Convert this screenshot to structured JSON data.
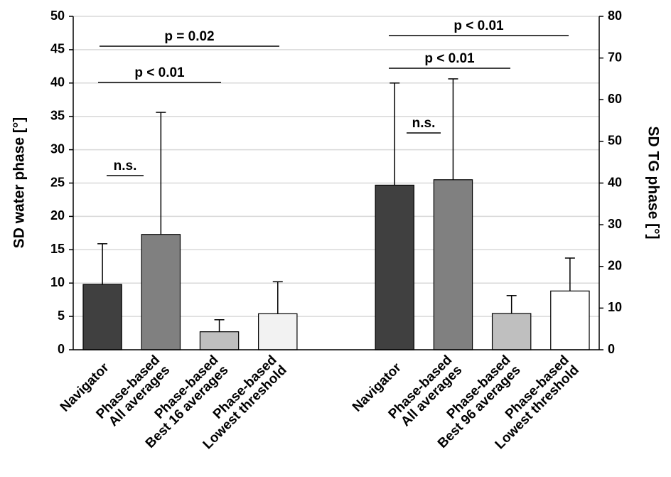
{
  "chart_data": {
    "type": "bar",
    "categories": [
      [
        "Navigator"
      ],
      [
        "Phase-based",
        "All averages"
      ],
      [
        "Phase-based",
        "Best 16 averages"
      ],
      [
        "Phase-based",
        "Lowest threshold"
      ],
      null,
      [
        "Navigator"
      ],
      [
        "Phase-based",
        "All averages"
      ],
      [
        "Phase-based",
        "Best 96 averages"
      ],
      [
        "Phase-based",
        "Lowest threshold"
      ]
    ],
    "ylabel": "SD water phase [°]",
    "y2label": "SD TG phase [°]",
    "ylim": [
      0,
      50
    ],
    "yticks": [
      0,
      5,
      10,
      15,
      20,
      25,
      30,
      35,
      40,
      45,
      50
    ],
    "y2lim": [
      0,
      80
    ],
    "y2ticks": [
      0,
      10,
      20,
      30,
      40,
      50,
      60,
      70,
      80
    ],
    "grid": true,
    "series": [
      {
        "values": [
          9.8,
          17.3,
          2.7,
          5.4,
          null,
          null,
          null,
          null,
          null
        ],
        "errors": [
          6.1,
          18.3,
          1.8,
          4.8,
          null,
          null,
          null,
          null,
          null
        ],
        "colors": [
          "#404040",
          "#808080",
          "#bfbfbf",
          "#f2f2f2",
          null,
          null,
          null,
          null,
          null
        ]
      },
      {
        "axis": "y2",
        "values": [
          null,
          null,
          null,
          null,
          null,
          39.5,
          40.8,
          8.7,
          14.1
        ],
        "errors": [
          null,
          null,
          null,
          null,
          null,
          24.5,
          24.2,
          4.3,
          7.9
        ],
        "colors": [
          null,
          null,
          null,
          null,
          null,
          "#404040",
          "#808080",
          "#bfbfbf",
          "#ffffff"
        ]
      }
    ],
    "annotations": [
      "p = 0.02",
      "p < 0.01",
      "n.s.",
      "p < 0.01",
      "p < 0.01",
      "n.s."
    ]
  }
}
